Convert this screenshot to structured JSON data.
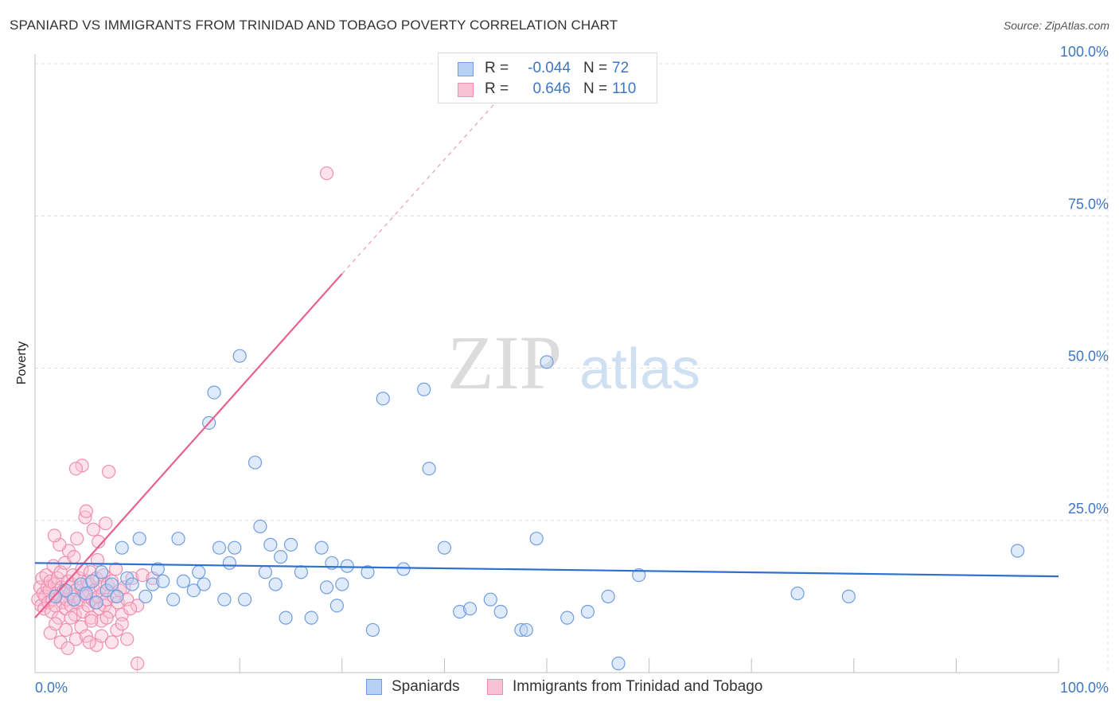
{
  "title": "SPANIARD VS IMMIGRANTS FROM TRINIDAD AND TOBAGO POVERTY CORRELATION CHART",
  "source": "Source: ZipAtlas.com",
  "watermark": {
    "zip": "ZIP",
    "atlas": "atlas"
  },
  "legend": {
    "spaniards": {
      "r_label": "R =",
      "r_value": "-0.044",
      "n_label": "N =",
      "n_value": "72"
    },
    "trinidad": {
      "r_label": "R =",
      "r_value": "0.646",
      "n_label": "N =",
      "n_value": "110"
    }
  },
  "bottom_legend": {
    "spaniards": "Spaniards",
    "trinidad": "Immigrants from Trinidad and Tobago"
  },
  "colors": {
    "blue_stroke": "#6f9ee0",
    "blue_fill": "#b8d0f3",
    "blue_line": "#2f6fd0",
    "pink_stroke": "#ee8fb0",
    "pink_fill": "#f8c2d4",
    "pink_line": "#e8608e",
    "axis_text": "#3d76c4",
    "grid": "#dddddd"
  },
  "chart_data": {
    "type": "scatter",
    "title": "SPANIARD VS IMMIGRANTS FROM TRINIDAD AND TOBAGO POVERTY CORRELATION CHART",
    "xlabel": "",
    "ylabel": "Poverty",
    "xlim": [
      0,
      100
    ],
    "ylim": [
      0,
      100
    ],
    "x_tick_labels": [
      "0.0%",
      "100.0%"
    ],
    "y_ticks": [
      25,
      50,
      75,
      100
    ],
    "y_tick_labels": [
      "25.0%",
      "50.0%",
      "75.0%",
      "100.0%"
    ],
    "grid": true,
    "series": [
      {
        "name": "Spaniards",
        "R": -0.044,
        "N": 72,
        "trend": {
          "x0": 0,
          "y0": 18.0,
          "x1": 100,
          "y1": 15.8
        },
        "points": [
          [
            2.0,
            12.5
          ],
          [
            3.0,
            13.5
          ],
          [
            3.8,
            12.0
          ],
          [
            4.5,
            14.5
          ],
          [
            5.0,
            13.0
          ],
          [
            5.6,
            15.0
          ],
          [
            6.0,
            11.5
          ],
          [
            6.5,
            16.5
          ],
          [
            7.0,
            13.5
          ],
          [
            7.5,
            14.5
          ],
          [
            8.0,
            12.5
          ],
          [
            8.5,
            20.5
          ],
          [
            9.0,
            15.5
          ],
          [
            9.5,
            14.5
          ],
          [
            10.2,
            22.0
          ],
          [
            10.8,
            12.5
          ],
          [
            11.5,
            14.5
          ],
          [
            12.0,
            17.0
          ],
          [
            12.5,
            15.0
          ],
          [
            13.5,
            12.0
          ],
          [
            14.0,
            22.0
          ],
          [
            14.5,
            15.0
          ],
          [
            15.5,
            13.5
          ],
          [
            16.0,
            16.5
          ],
          [
            16.5,
            14.5
          ],
          [
            17.0,
            41.0
          ],
          [
            17.5,
            46.0
          ],
          [
            18.0,
            20.5
          ],
          [
            18.5,
            12.0
          ],
          [
            19.0,
            18.0
          ],
          [
            19.5,
            20.5
          ],
          [
            20.0,
            52.0
          ],
          [
            20.5,
            12.0
          ],
          [
            21.5,
            34.5
          ],
          [
            22.0,
            24.0
          ],
          [
            22.5,
            16.5
          ],
          [
            23.0,
            21.0
          ],
          [
            23.5,
            14.5
          ],
          [
            24.0,
            19.0
          ],
          [
            24.5,
            9.0
          ],
          [
            25.0,
            21.0
          ],
          [
            26.0,
            16.5
          ],
          [
            27.0,
            9.0
          ],
          [
            28.0,
            20.5
          ],
          [
            28.5,
            14.0
          ],
          [
            29.0,
            18.0
          ],
          [
            29.5,
            11.0
          ],
          [
            30.0,
            14.5
          ],
          [
            30.5,
            17.5
          ],
          [
            32.5,
            16.5
          ],
          [
            33.0,
            7.0
          ],
          [
            34.0,
            45.0
          ],
          [
            36.0,
            17.0
          ],
          [
            38.0,
            46.5
          ],
          [
            38.5,
            33.5
          ],
          [
            40.0,
            20.5
          ],
          [
            41.5,
            10.0
          ],
          [
            42.5,
            10.5
          ],
          [
            44.5,
            12.0
          ],
          [
            45.5,
            10.0
          ],
          [
            47.5,
            7.0
          ],
          [
            48.0,
            7.0
          ],
          [
            49.0,
            22.0
          ],
          [
            50.0,
            51.0
          ],
          [
            52.0,
            9.0
          ],
          [
            54.0,
            10.0
          ],
          [
            56.0,
            12.5
          ],
          [
            57.0,
            1.5
          ],
          [
            59.0,
            16.0
          ],
          [
            74.5,
            13.0
          ],
          [
            79.5,
            12.5
          ],
          [
            96.0,
            20.0
          ]
        ]
      },
      {
        "name": "Immigrants from Trinidad and Tobago",
        "R": 0.646,
        "N": 110,
        "trend": {
          "x0": 0,
          "y0": 9.0,
          "x1": 30,
          "y1": 65.5
        },
        "trend_extension": {
          "x0": 30,
          "y0": 65.5,
          "x1": 46,
          "y1": 95.5
        },
        "points": [
          [
            0.3,
            12.0
          ],
          [
            0.5,
            14.0
          ],
          [
            0.6,
            11.0
          ],
          [
            0.7,
            15.5
          ],
          [
            0.8,
            13.0
          ],
          [
            0.9,
            10.5
          ],
          [
            1.0,
            12.5
          ],
          [
            1.1,
            16.0
          ],
          [
            1.2,
            14.0
          ],
          [
            1.3,
            11.5
          ],
          [
            1.4,
            13.5
          ],
          [
            1.5,
            15.0
          ],
          [
            1.6,
            10.0
          ],
          [
            1.7,
            12.0
          ],
          [
            1.8,
            17.5
          ],
          [
            1.9,
            14.5
          ],
          [
            2.0,
            11.0
          ],
          [
            2.1,
            13.0
          ],
          [
            2.2,
            15.5
          ],
          [
            2.3,
            9.0
          ],
          [
            2.4,
            12.5
          ],
          [
            2.5,
            16.5
          ],
          [
            2.6,
            14.0
          ],
          [
            2.7,
            11.5
          ],
          [
            2.8,
            13.5
          ],
          [
            2.9,
            18.0
          ],
          [
            3.0,
            10.5
          ],
          [
            3.1,
            12.0
          ],
          [
            3.2,
            15.0
          ],
          [
            3.3,
            20.0
          ],
          [
            3.4,
            13.0
          ],
          [
            3.5,
            11.0
          ],
          [
            3.6,
            14.5
          ],
          [
            3.7,
            16.0
          ],
          [
            3.8,
            12.5
          ],
          [
            3.9,
            9.5
          ],
          [
            4.0,
            13.5
          ],
          [
            4.1,
            22.0
          ],
          [
            4.2,
            11.5
          ],
          [
            4.3,
            15.5
          ],
          [
            4.4,
            12.0
          ],
          [
            4.5,
            14.0
          ],
          [
            4.6,
            17.0
          ],
          [
            4.7,
            10.0
          ],
          [
            4.8,
            13.0
          ],
          [
            4.9,
            25.5
          ],
          [
            5.0,
            12.5
          ],
          [
            5.1,
            15.0
          ],
          [
            5.2,
            11.0
          ],
          [
            5.3,
            14.5
          ],
          [
            5.4,
            16.5
          ],
          [
            5.5,
            9.0
          ],
          [
            5.6,
            12.0
          ],
          [
            5.7,
            23.5
          ],
          [
            5.8,
            13.5
          ],
          [
            5.9,
            11.5
          ],
          [
            6.0,
            15.5
          ],
          [
            6.1,
            18.5
          ],
          [
            6.2,
            12.5
          ],
          [
            6.3,
            10.5
          ],
          [
            6.4,
            14.0
          ],
          [
            6.5,
            8.5
          ],
          [
            6.6,
            13.0
          ],
          [
            6.7,
            16.0
          ],
          [
            6.8,
            11.0
          ],
          [
            6.9,
            24.5
          ],
          [
            7.0,
            12.0
          ],
          [
            7.1,
            14.5
          ],
          [
            7.3,
            10.0
          ],
          [
            7.5,
            15.0
          ],
          [
            7.7,
            12.5
          ],
          [
            7.9,
            17.0
          ],
          [
            8.1,
            11.5
          ],
          [
            8.3,
            13.5
          ],
          [
            8.5,
            9.5
          ],
          [
            8.7,
            14.0
          ],
          [
            9.0,
            12.0
          ],
          [
            9.5,
            15.5
          ],
          [
            10.0,
            11.0
          ],
          [
            10.5,
            16.0
          ],
          [
            1.5,
            6.5
          ],
          [
            2.0,
            8.0
          ],
          [
            2.5,
            5.0
          ],
          [
            3.0,
            7.0
          ],
          [
            3.5,
            9.0
          ],
          [
            4.0,
            5.5
          ],
          [
            4.5,
            7.5
          ],
          [
            5.0,
            6.0
          ],
          [
            5.5,
            8.5
          ],
          [
            6.0,
            4.5
          ],
          [
            6.5,
            6.0
          ],
          [
            7.0,
            9.0
          ],
          [
            7.5,
            5.0
          ],
          [
            8.0,
            7.0
          ],
          [
            8.5,
            8.0
          ],
          [
            9.0,
            5.5
          ],
          [
            3.2,
            4.0
          ],
          [
            5.3,
            5.0
          ],
          [
            2.4,
            21.0
          ],
          [
            1.9,
            22.5
          ],
          [
            4.6,
            34.0
          ],
          [
            3.8,
            19.0
          ],
          [
            6.2,
            21.5
          ],
          [
            9.3,
            10.5
          ],
          [
            10.0,
            1.5
          ],
          [
            11.5,
            15.5
          ],
          [
            7.2,
            33.0
          ],
          [
            4.0,
            33.5
          ],
          [
            28.5,
            82.0
          ],
          [
            5.0,
            26.5
          ]
        ]
      }
    ]
  }
}
